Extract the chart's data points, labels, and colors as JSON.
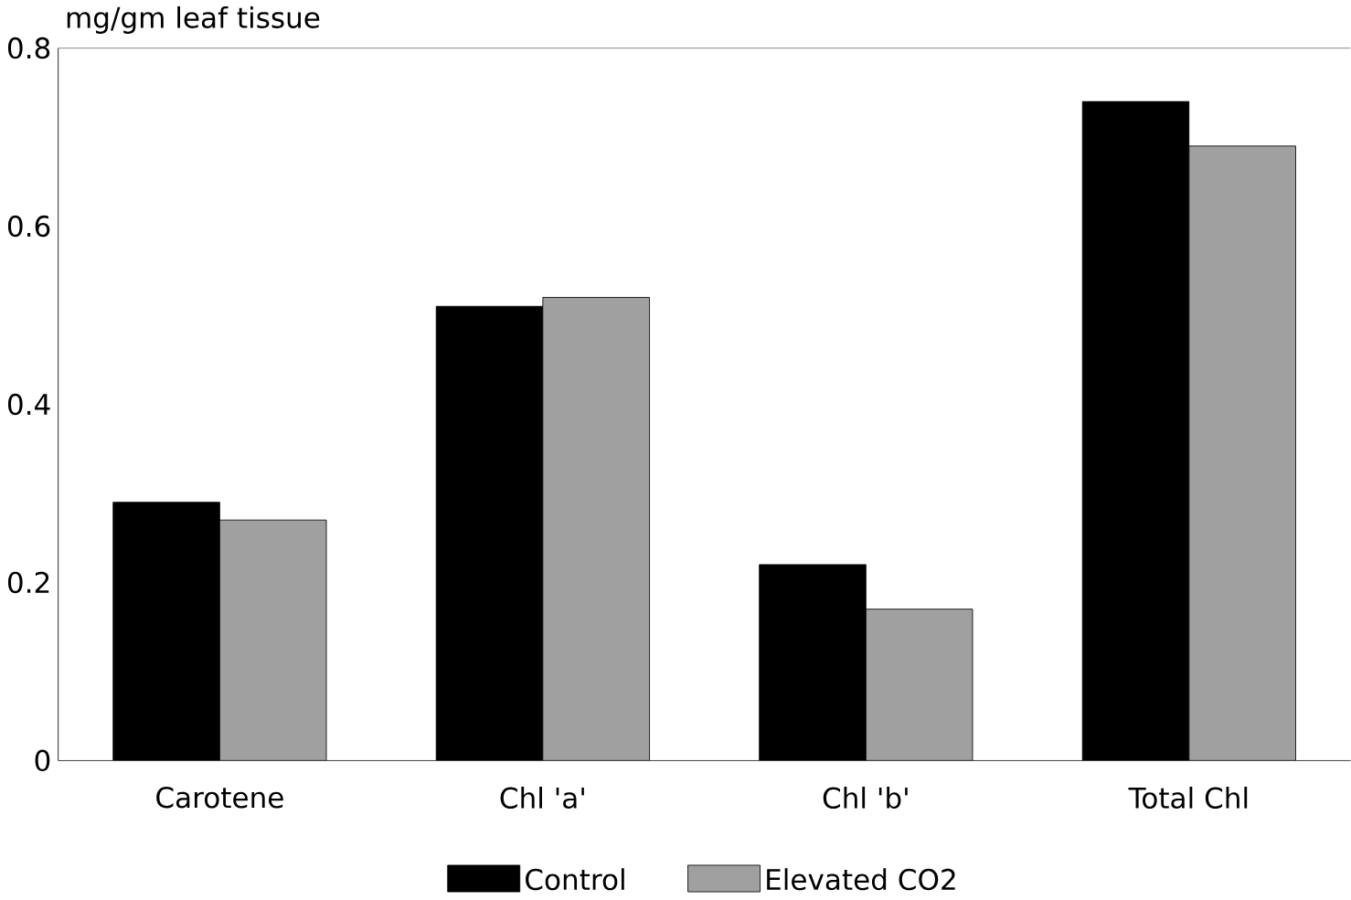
{
  "chart_data": {
    "type": "bar",
    "ylabel": "mg/gm leaf tissue",
    "categories": [
      "Carotene",
      "Chl 'a'",
      "Chl 'b'",
      "Total Chl"
    ],
    "series": [
      {
        "name": "Control",
        "color": "#000000",
        "values": [
          0.29,
          0.51,
          0.22,
          0.74
        ]
      },
      {
        "name": "Elevated CO2",
        "color": "#a0a0a0",
        "values": [
          0.27,
          0.52,
          0.17,
          0.69
        ]
      }
    ],
    "ylim": [
      0,
      0.8
    ],
    "yticks": [
      0,
      {
        "value": 0.2,
        "label": "0.2"
      },
      {
        "value": 0.4,
        "label": "0.4"
      },
      {
        "value": 0.6,
        "label": "0.6"
      },
      {
        "value": 0.8,
        "label": "0.8"
      }
    ],
    "grid": false,
    "legend": "bottom"
  }
}
